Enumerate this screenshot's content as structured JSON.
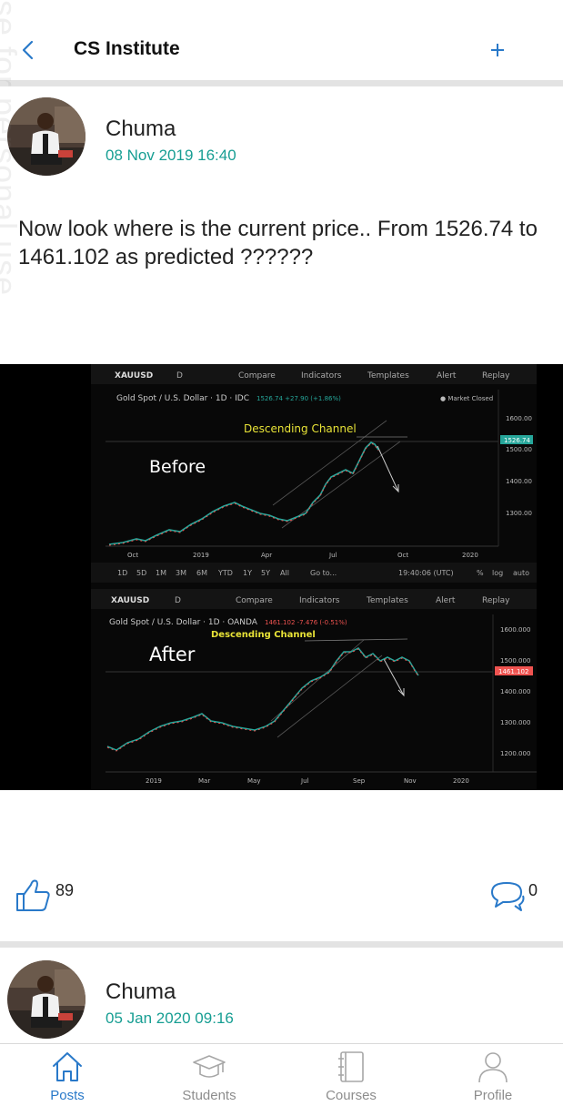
{
  "header": {
    "title": "CS Institute"
  },
  "watermark": "se for personal use",
  "posts": [
    {
      "author": "Chuma",
      "timestamp": "08 Nov 2019 16:40",
      "text": "Now look where is the current price.. From 1526.74 to 1461.102 as predicted ??????",
      "likes": "89",
      "comments": "0",
      "image": {
        "top_panel": {
          "toolbar": {
            "symbol": "XAUUSD",
            "interval": "D",
            "compare": "Compare",
            "indicators": "Indicators",
            "templates": "Templates",
            "alert": "Alert",
            "replay": "Replay"
          },
          "legend": "Gold Spot / U.S. Dollar · 1D · IDC",
          "legend_change": "1526.74 +27.90 (+1.86%)",
          "market_status": "● Market Closed",
          "annotation": "Descending Channel",
          "label": "Before",
          "price_tag": "1526.74",
          "y_ticks": [
            "1600.00",
            "1500.00",
            "1400.00",
            "1300.00"
          ],
          "x_ticks": [
            "Oct",
            "2019",
            "Apr",
            "Jul",
            "Oct",
            "2020"
          ],
          "ranges": [
            "1D",
            "5D",
            "1M",
            "3M",
            "6M",
            "YTD",
            "1Y",
            "5Y",
            "All"
          ],
          "goto": "Go to...",
          "clock": "19:40:06 (UTC)",
          "scale_opts": [
            "%",
            "log",
            "auto"
          ]
        },
        "bottom_panel": {
          "toolbar": {
            "symbol": "XAUUSD",
            "interval": "D",
            "compare": "Compare",
            "indicators": "Indicators",
            "templates": "Templates",
            "alert": "Alert",
            "replay": "Replay"
          },
          "legend": "Gold Spot / U.S. Dollar · 1D · OANDA",
          "legend_change": "1461.102 -7.476 (-0.51%)",
          "annotation": "Descending Channel",
          "label": "After",
          "price_tag": "1461.102",
          "y_ticks": [
            "1600.000",
            "1500.000",
            "1400.000",
            "1300.000",
            "1200.000"
          ],
          "x_ticks": [
            "2019",
            "Mar",
            "May",
            "Jul",
            "Sep",
            "Nov",
            "2020"
          ]
        }
      }
    },
    {
      "author": "Chuma",
      "timestamp": "05 Jan 2020 09:16"
    }
  ],
  "nav": {
    "items": [
      {
        "label": "Posts"
      },
      {
        "label": "Students"
      },
      {
        "label": "Courses"
      },
      {
        "label": "Profile"
      }
    ]
  },
  "colors": {
    "accent": "#2979c9",
    "timestamp": "#179e93",
    "inactive": "#8d8d8d",
    "candle_up": "#26a69a",
    "candle_down": "#ef5350",
    "annotation": "#e8e337"
  }
}
